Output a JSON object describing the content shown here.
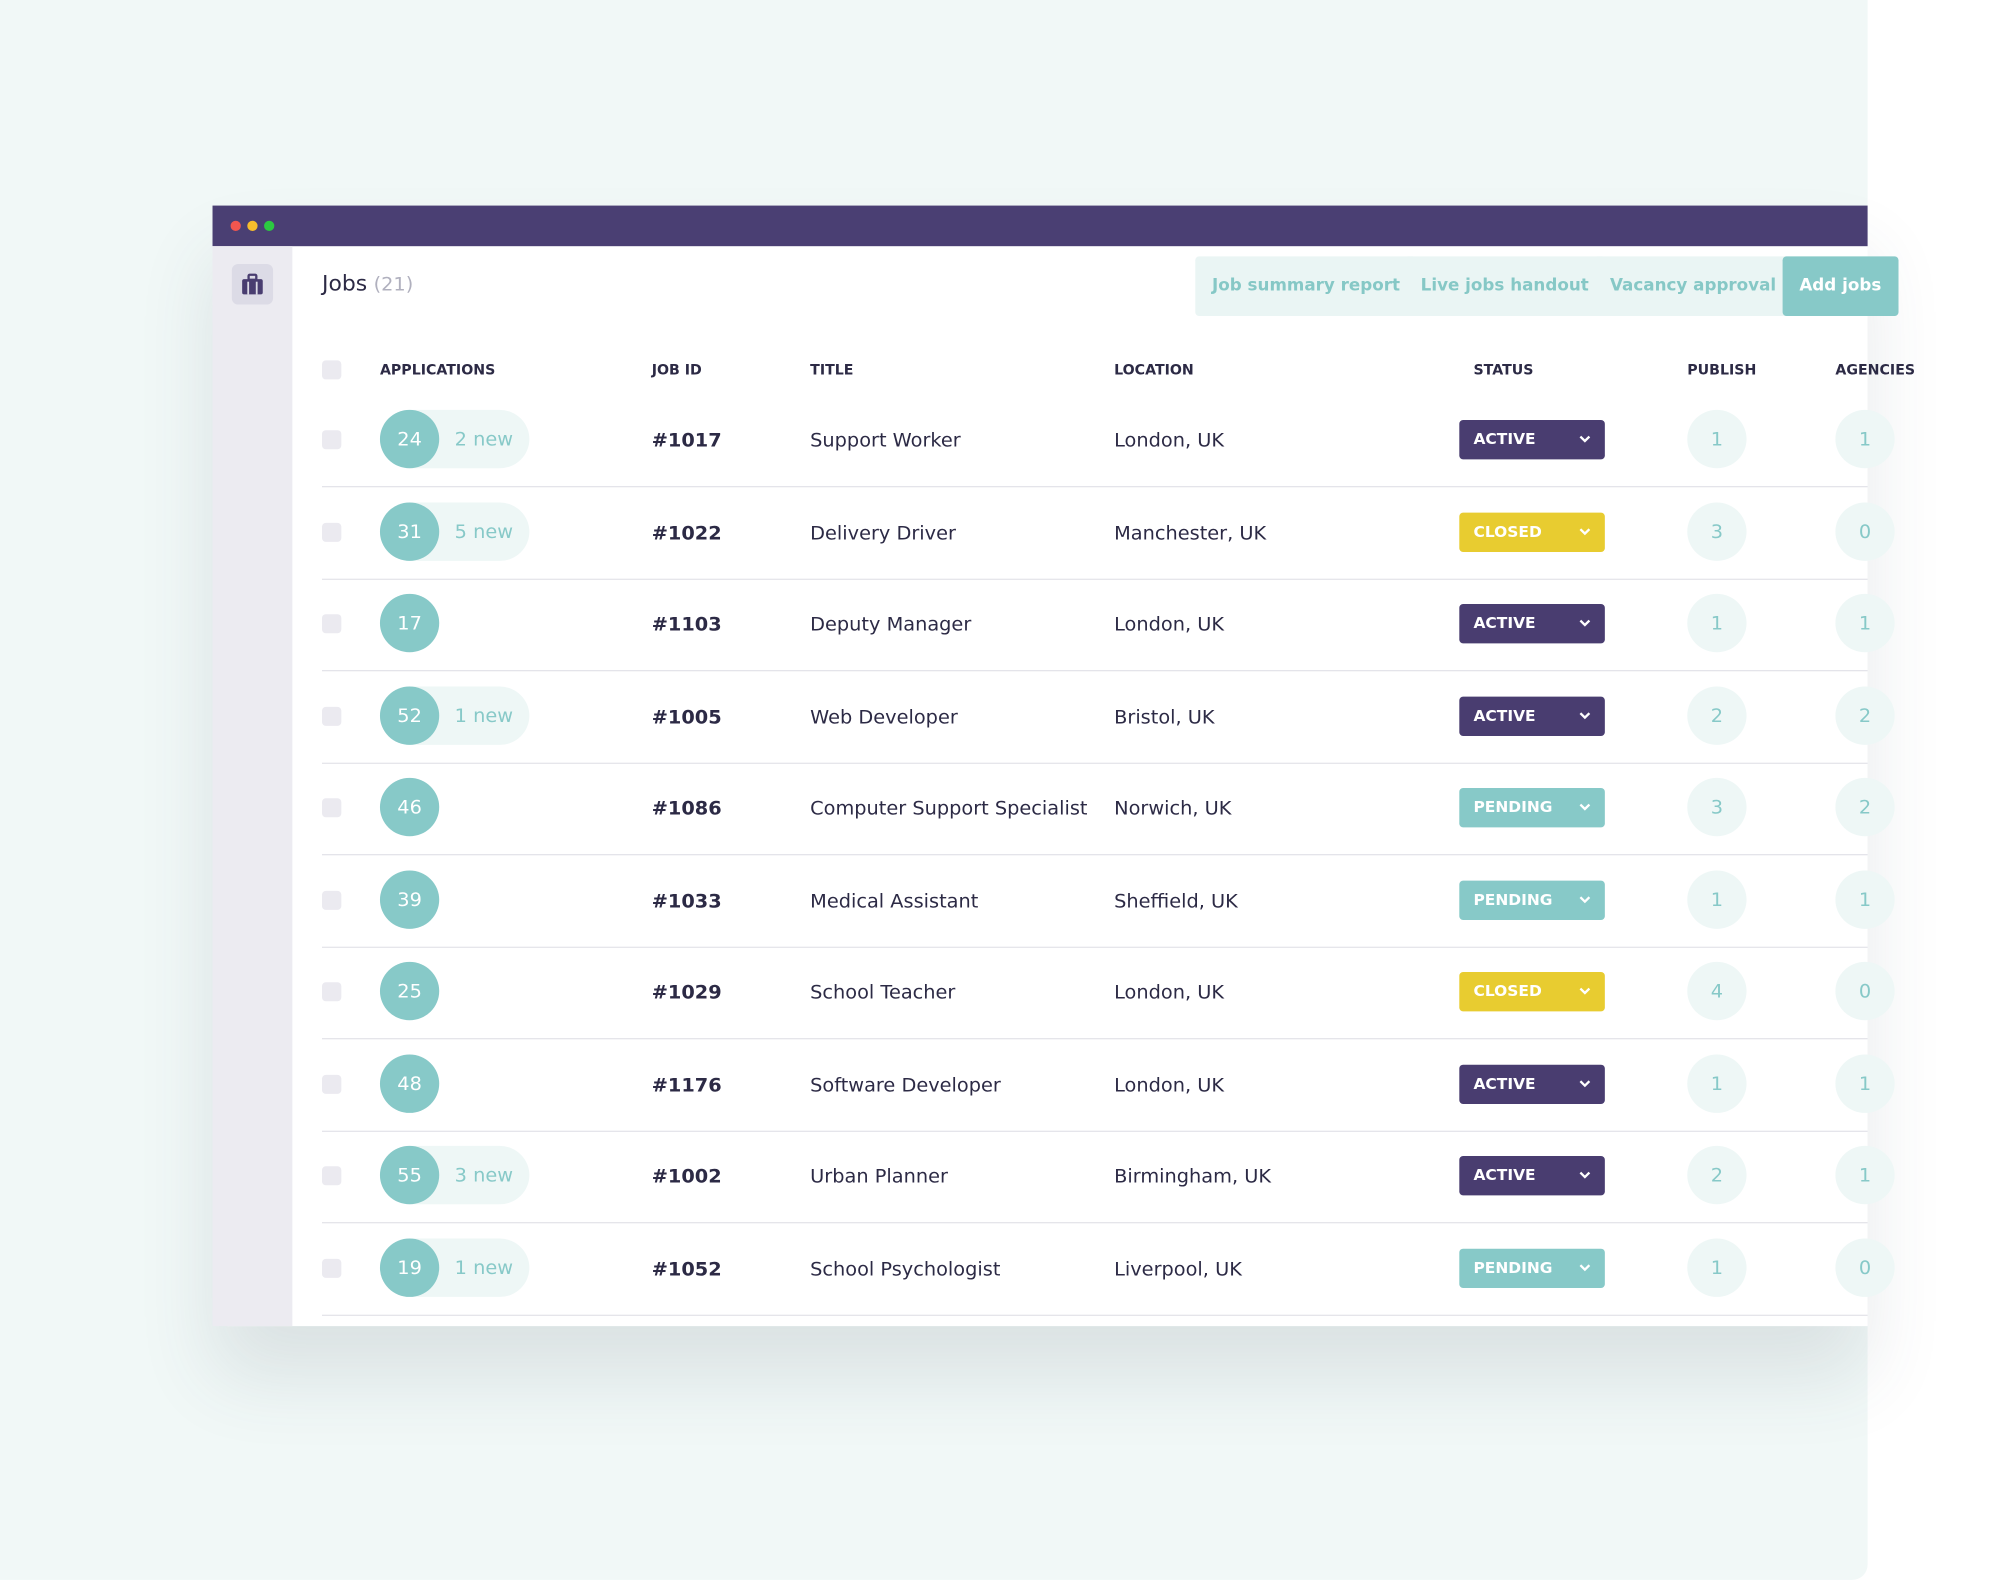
{
  "header": {
    "title": "Jobs",
    "count": "(21)",
    "buttons": [
      "Job summary report",
      "Live jobs handout",
      "Vacancy approval",
      "Add jobs"
    ]
  },
  "table": {
    "columns": [
      "APPLICATIONS",
      "JOB ID",
      "TITLE",
      "LOCATION",
      "STATUS",
      "PUBLISH",
      "AGENCIES"
    ],
    "rows": [
      {
        "applications": "24",
        "new": "2 new",
        "id": "#1017",
        "title": "Support Worker",
        "location": "London, UK",
        "status": "ACTIVE",
        "publish": "1",
        "agencies": "1"
      },
      {
        "applications": "31",
        "new": "5 new",
        "id": "#1022",
        "title": "Delivery Driver",
        "location": "Manchester, UK",
        "status": "CLOSED",
        "publish": "3",
        "agencies": "0"
      },
      {
        "applications": "17",
        "new": null,
        "id": "#1103",
        "title": "Deputy Manager",
        "location": "London, UK",
        "status": "ACTIVE",
        "publish": "1",
        "agencies": "1"
      },
      {
        "applications": "52",
        "new": "1 new",
        "id": "#1005",
        "title": "Web Developer",
        "location": "Bristol, UK",
        "status": "ACTIVE",
        "publish": "2",
        "agencies": "2"
      },
      {
        "applications": "46",
        "new": null,
        "id": "#1086",
        "title": "Computer Support Specialist",
        "location": "Norwich, UK",
        "status": "PENDING",
        "publish": "3",
        "agencies": "2"
      },
      {
        "applications": "39",
        "new": null,
        "id": "#1033",
        "title": "Medical Assistant",
        "location": "Sheffield, UK",
        "status": "PENDING",
        "publish": "1",
        "agencies": "1"
      },
      {
        "applications": "25",
        "new": null,
        "id": "#1029",
        "title": "School Teacher",
        "location": "London, UK",
        "status": "CLOSED",
        "publish": "4",
        "agencies": "0"
      },
      {
        "applications": "48",
        "new": null,
        "id": "#1176",
        "title": "Software Developer",
        "location": "London, UK",
        "status": "ACTIVE",
        "publish": "1",
        "agencies": "1"
      },
      {
        "applications": "55",
        "new": "3 new",
        "id": "#1002",
        "title": "Urban Planner",
        "location": "Birmingham, UK",
        "status": "ACTIVE",
        "publish": "2",
        "agencies": "1"
      },
      {
        "applications": "19",
        "new": "1 new",
        "id": "#1052",
        "title": "School Psychologist",
        "location": "Liverpool, UK",
        "status": "PENDING",
        "publish": "1",
        "agencies": "0"
      }
    ]
  }
}
